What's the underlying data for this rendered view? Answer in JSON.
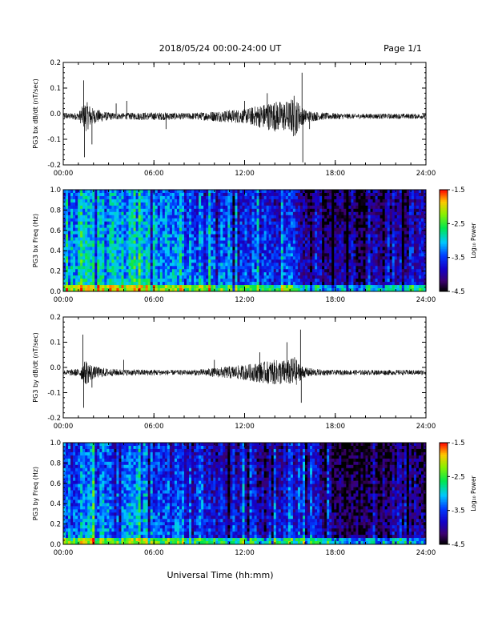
{
  "header": {
    "title": "2018/05/24  00:00-24:00 UT",
    "page": "Page 1/1"
  },
  "footer": {
    "xlabel": "Universal Time (hh:mm)"
  },
  "x_ticks": [
    "00:00",
    "06:00",
    "12:00",
    "18:00",
    "24:00"
  ],
  "colorbar": {
    "label": "Log₁₀ Power",
    "ticks": [
      "-1.5",
      "-2.5",
      "-3.5",
      "-4.5"
    ],
    "range": [
      -4.5,
      -1.5
    ],
    "colormap": "rainbow (black-purple-blue-cyan-green-yellow-red)"
  },
  "colors": {
    "trace": "#000000",
    "axes": "#000000",
    "background": "#ffffff"
  },
  "chart_data": [
    {
      "type": "line",
      "panel": "bx-wave",
      "ylabel": "PG3 bx dB/dt (nT/sec)",
      "xlim": [
        0,
        24
      ],
      "ylim": [
        -0.2,
        0.2
      ],
      "yticks": [
        "0.2",
        "0.1",
        "0.0",
        "-0.1",
        "-0.2"
      ],
      "baseline": -0.01,
      "envelope": {
        "hours": [
          0,
          1,
          1.5,
          2,
          3,
          4,
          5,
          6,
          7,
          8,
          9,
          10,
          11,
          12,
          13,
          14,
          15,
          15.3,
          15.5,
          16,
          17,
          18,
          19,
          20,
          21,
          22,
          23,
          24
        ],
        "amplitude": [
          0.01,
          0.015,
          0.06,
          0.03,
          0.015,
          0.012,
          0.015,
          0.015,
          0.015,
          0.012,
          0.015,
          0.02,
          0.025,
          0.028,
          0.045,
          0.06,
          0.06,
          0.09,
          0.06,
          0.025,
          0.015,
          0.012,
          0.01,
          0.01,
          0.01,
          0.01,
          0.01,
          0.01
        ]
      },
      "spikes": [
        {
          "t": 1.35,
          "y": 0.13
        },
        {
          "t": 1.4,
          "y": -0.17
        },
        {
          "t": 1.9,
          "y": -0.12
        },
        {
          "t": 3.5,
          "y": 0.04
        },
        {
          "t": 4.2,
          "y": 0.05
        },
        {
          "t": 6.8,
          "y": -0.06
        },
        {
          "t": 12.0,
          "y": 0.05
        },
        {
          "t": 13.5,
          "y": 0.08
        },
        {
          "t": 15.8,
          "y": 0.16
        },
        {
          "t": 15.85,
          "y": -0.19
        },
        {
          "t": 16.3,
          "y": -0.06
        }
      ]
    },
    {
      "type": "heatmap",
      "panel": "bx-spectrogram",
      "ylabel": "PG3 bx Freq (Hz)",
      "xlim": [
        0,
        24
      ],
      "ylim": [
        0,
        1.0
      ],
      "yticks": [
        "1.0",
        "0.8",
        "0.6",
        "0.4",
        "0.2",
        "0.0"
      ],
      "zlim": [
        -4.5,
        -1.5
      ],
      "level_by_hour": {
        "hours": [
          0,
          2,
          4,
          6,
          8,
          10,
          12,
          14,
          15,
          16,
          17,
          18,
          19,
          20,
          21,
          22,
          24
        ],
        "log_power": [
          -3.2,
          -2.9,
          -3.0,
          -3.0,
          -3.1,
          -3.4,
          -3.5,
          -3.6,
          -3.4,
          -3.7,
          -3.7,
          -4.0,
          -4.1,
          -4.1,
          -4.0,
          -3.8,
          -3.8
        ]
      }
    },
    {
      "type": "line",
      "panel": "by-wave",
      "ylabel": "PG3 by dB/dt (nT/sec)",
      "xlim": [
        0,
        24
      ],
      "ylim": [
        -0.2,
        0.2
      ],
      "yticks": [
        "0.2",
        "0.1",
        "0.0",
        "-0.1",
        "-0.2"
      ],
      "baseline": -0.02,
      "envelope": {
        "hours": [
          0,
          1,
          1.5,
          2,
          3,
          4,
          5,
          6,
          7,
          8,
          9,
          10,
          11,
          12,
          13,
          14,
          15,
          15.3,
          15.5,
          16,
          17,
          18,
          19,
          20,
          21,
          22,
          23,
          24
        ],
        "amplitude": [
          0.01,
          0.015,
          0.05,
          0.025,
          0.015,
          0.012,
          0.012,
          0.012,
          0.01,
          0.01,
          0.012,
          0.018,
          0.025,
          0.03,
          0.04,
          0.05,
          0.05,
          0.07,
          0.04,
          0.02,
          0.012,
          0.01,
          0.01,
          0.01,
          0.01,
          0.01,
          0.01,
          0.01
        ]
      },
      "spikes": [
        {
          "t": 1.3,
          "y": 0.13
        },
        {
          "t": 1.35,
          "y": -0.16
        },
        {
          "t": 1.9,
          "y": -0.08
        },
        {
          "t": 4.0,
          "y": 0.03
        },
        {
          "t": 10.0,
          "y": 0.03
        },
        {
          "t": 13.0,
          "y": 0.06
        },
        {
          "t": 14.8,
          "y": 0.1
        },
        {
          "t": 15.7,
          "y": 0.15
        },
        {
          "t": 15.75,
          "y": -0.14
        }
      ]
    },
    {
      "type": "heatmap",
      "panel": "by-spectrogram",
      "ylabel": "PG3 by Freq (Hz)",
      "xlim": [
        0,
        24
      ],
      "ylim": [
        0,
        1.0
      ],
      "yticks": [
        "1.0",
        "0.8",
        "0.6",
        "0.4",
        "0.2",
        "0.0"
      ],
      "zlim": [
        -4.5,
        -1.5
      ],
      "level_by_hour": {
        "hours": [
          0,
          2,
          4,
          6,
          8,
          10,
          12,
          14,
          15,
          16,
          17,
          18,
          19,
          20,
          21,
          22,
          24
        ],
        "log_power": [
          -3.4,
          -3.1,
          -3.2,
          -3.2,
          -3.3,
          -3.6,
          -3.7,
          -3.7,
          -3.5,
          -3.8,
          -3.8,
          -4.1,
          -4.2,
          -4.2,
          -4.1,
          -3.9,
          -3.9
        ]
      }
    }
  ]
}
